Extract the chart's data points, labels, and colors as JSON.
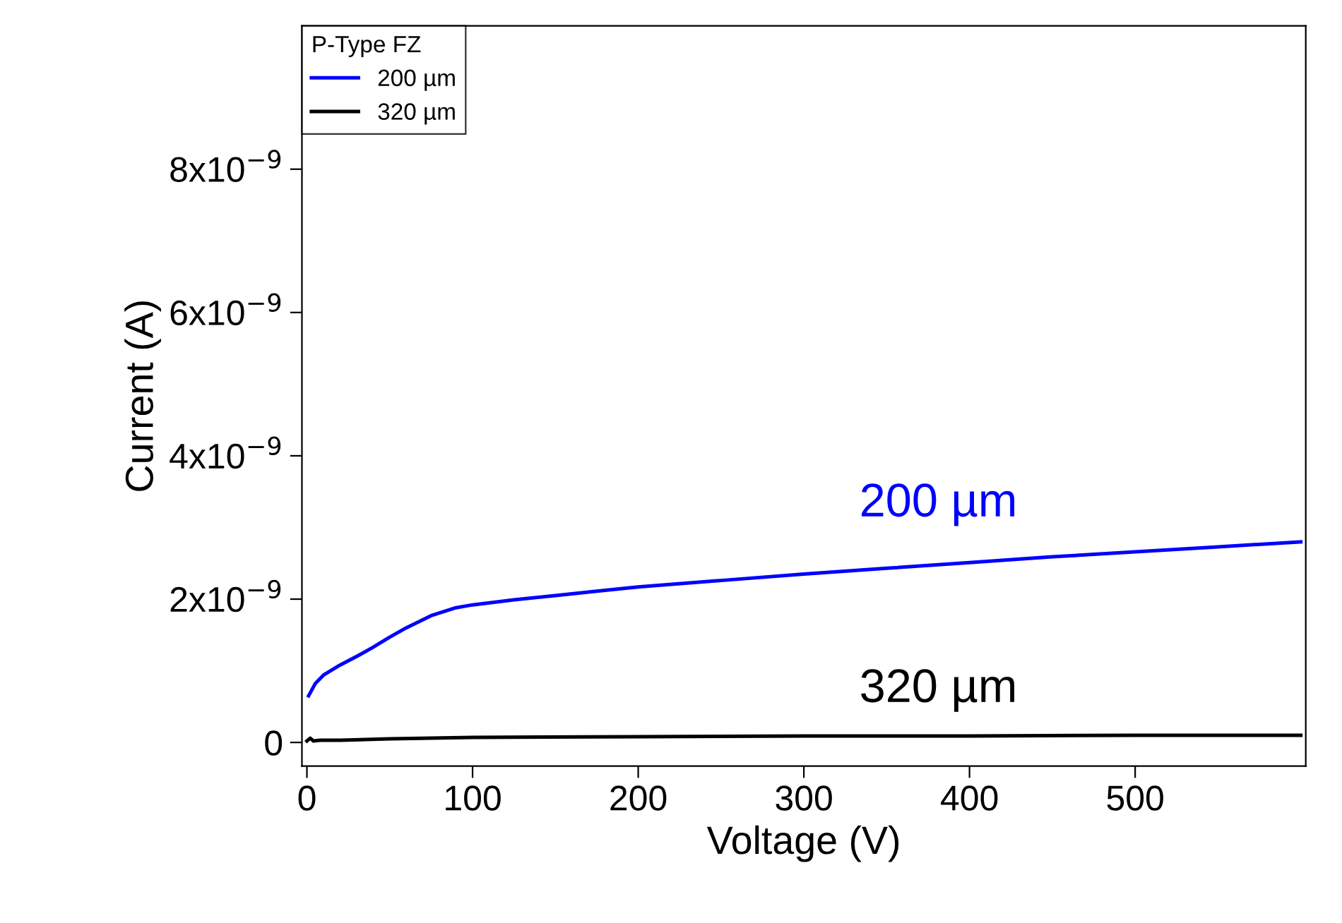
{
  "chart_data": {
    "type": "line",
    "xlabel": "Voltage (V)",
    "ylabel": "Current (A)",
    "legend_title": "P-Type FZ",
    "legend": "top left",
    "grid": false,
    "line_style": "solid",
    "marker": "none",
    "xlim": [
      -3,
      603
    ],
    "xticks": [
      0,
      100,
      200,
      300,
      400,
      500
    ],
    "ylim": [
      -3.3e-10,
      1e-08
    ],
    "yticks": [
      {
        "value": 0,
        "label": "0"
      },
      {
        "value": 2e-09,
        "label": "2x10$^{−9}$"
      },
      {
        "value": 4e-09,
        "label": "4x10$^{−9}$"
      },
      {
        "value": 6e-09,
        "label": "6x10$^{−9}$"
      },
      {
        "value": 8e-09,
        "label": "8x10$^{−9}$"
      }
    ],
    "series": [
      {
        "name": "200 µm",
        "color": "#0000ff",
        "x": [
          1,
          5,
          10,
          20,
          30,
          40,
          50,
          60,
          75,
          90,
          100,
          125,
          150,
          175,
          200,
          250,
          300,
          350,
          400,
          450,
          500,
          550,
          600
        ],
        "values": [
          6.5e-10,
          8.2e-10,
          9.4e-10,
          1.08e-09,
          1.2e-09,
          1.33e-09,
          1.47e-09,
          1.6e-09,
          1.77e-09,
          1.88e-09,
          1.92e-09,
          1.99e-09,
          2.05e-09,
          2.11e-09,
          2.17e-09,
          2.26e-09,
          2.35e-09,
          2.43e-09,
          2.51e-09,
          2.59e-09,
          2.66e-09,
          2.73e-09,
          2.8e-09
        ]
      },
      {
        "name": "320 µm",
        "color": "#000000",
        "x": [
          0,
          2,
          4,
          8,
          20,
          50,
          100,
          200,
          300,
          400,
          500,
          600
        ],
        "values": [
          2e-11,
          6e-11,
          2e-11,
          3e-11,
          3e-11,
          5e-11,
          7e-11,
          8e-11,
          9e-11,
          9e-11,
          1e-10,
          1e-10
        ]
      }
    ],
    "annotations": [
      "200 µm",
      "320 µm"
    ]
  }
}
